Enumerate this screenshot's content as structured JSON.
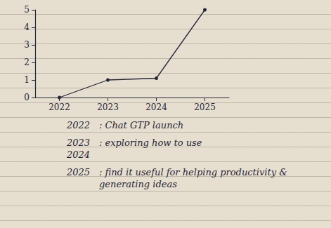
{
  "chart_data": {
    "type": "line",
    "categories": [
      "2022",
      "2023",
      "2024",
      "2025"
    ],
    "values": [
      0,
      1,
      1.1,
      5
    ],
    "color": "#26263a",
    "marker": "circle",
    "ylim": [
      0,
      5
    ],
    "yticks": [
      0,
      1,
      2,
      3,
      4,
      5
    ],
    "grid": false,
    "annotations": [
      {
        "years": [
          "2022"
        ],
        "text": ": Chat GTP launch"
      },
      {
        "years": [
          "2023",
          "2024"
        ],
        "text": ": exploring how to use"
      },
      {
        "years": [
          "2025"
        ],
        "text": ": find it useful for helping productivity & generating ideas"
      }
    ]
  }
}
